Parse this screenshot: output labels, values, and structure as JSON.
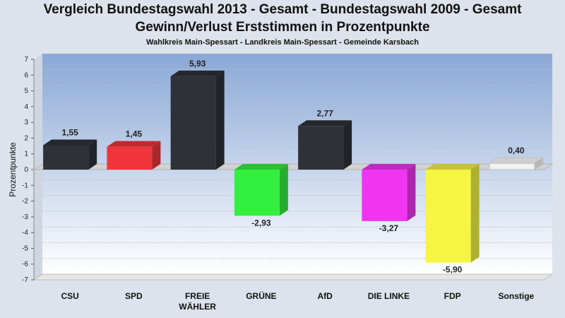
{
  "header": {
    "title": "Vergleich Bundestagswahl 2013 - Gesamt - Bundestagswahl 2009 - Gesamt",
    "subtitle": "Gewinn/Verlust Erststimmen in Prozentpunkte",
    "caption": "Wahlkreis Main-Spessart - Landkreis Main-Spessart - Gemeinde Karsbach"
  },
  "chart_data": {
    "type": "bar",
    "title": "Vergleich Bundestagswahl 2013 - Gesamt - Bundestagswahl 2009 - Gesamt",
    "subtitle": "Gewinn/Verlust Erststimmen in Prozentpunkte",
    "ylabel": "Prozentpunkte",
    "xlabel": "",
    "ylim": [
      -7,
      7
    ],
    "yticks": [
      7,
      6,
      5,
      4,
      3,
      2,
      1,
      0,
      -1,
      -2,
      -3,
      -4,
      -5,
      -6,
      -7
    ],
    "categories": [
      "CSU",
      "SPD",
      "FREIE WÄHLER",
      "GRÜNE",
      "AfD",
      "DIE LINKE",
      "FDP",
      "Sonstige"
    ],
    "category_lines": [
      [
        "CSU"
      ],
      [
        "SPD"
      ],
      [
        "FREIE",
        "WÄHLER"
      ],
      [
        "GRÜNE"
      ],
      [
        "AfD"
      ],
      [
        "DIE LINKE"
      ],
      [
        "FDP"
      ],
      [
        "Sonstige"
      ]
    ],
    "values": [
      1.55,
      1.45,
      5.93,
      -2.93,
      2.77,
      -3.27,
      -5.9,
      0.4
    ],
    "value_labels": [
      "1,55",
      "1,45",
      "5,93",
      "-2,93",
      "2,77",
      "-3,27",
      "-5,90",
      "0,40"
    ],
    "colors": [
      "#2e3138",
      "#f0353a",
      "#2e3138",
      "#33f040",
      "#2e3138",
      "#f035f0",
      "#f5f542",
      "#f2f2f2"
    ],
    "grid": true,
    "legend": "none"
  }
}
